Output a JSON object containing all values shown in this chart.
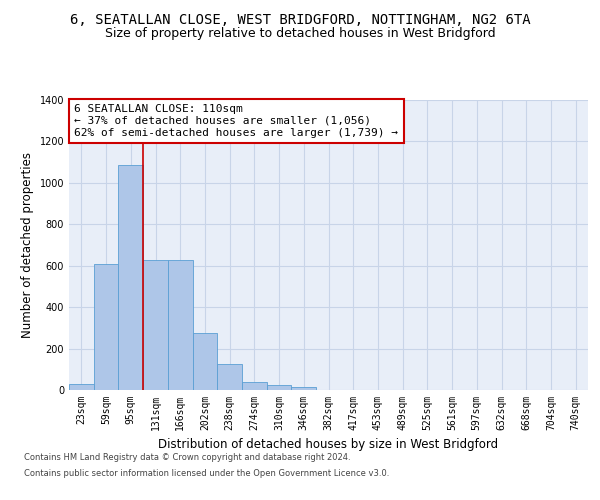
{
  "title_line1": "6, SEATALLAN CLOSE, WEST BRIDGFORD, NOTTINGHAM, NG2 6TA",
  "title_line2": "Size of property relative to detached houses in West Bridgford",
  "xlabel": "Distribution of detached houses by size in West Bridgford",
  "ylabel": "Number of detached properties",
  "footer_line1": "Contains HM Land Registry data © Crown copyright and database right 2024.",
  "footer_line2": "Contains public sector information licensed under the Open Government Licence v3.0.",
  "bar_labels": [
    "23sqm",
    "59sqm",
    "95sqm",
    "131sqm",
    "166sqm",
    "202sqm",
    "238sqm",
    "274sqm",
    "310sqm",
    "346sqm",
    "382sqm",
    "417sqm",
    "453sqm",
    "489sqm",
    "525sqm",
    "561sqm",
    "597sqm",
    "632sqm",
    "668sqm",
    "704sqm",
    "740sqm"
  ],
  "bar_values": [
    30,
    610,
    1085,
    630,
    630,
    275,
    125,
    40,
    25,
    15,
    0,
    0,
    0,
    0,
    0,
    0,
    0,
    0,
    0,
    0,
    0
  ],
  "bar_color": "#aec6e8",
  "bar_edge_color": "#5a9fd4",
  "annotation_text": "6 SEATALLAN CLOSE: 110sqm\n← 37% of detached houses are smaller (1,056)\n62% of semi-detached houses are larger (1,739) →",
  "annotation_box_color": "#ffffff",
  "annotation_box_edge": "#cc0000",
  "vline_x": 2.5,
  "vline_color": "#cc0000",
  "ylim": [
    0,
    1400
  ],
  "yticks": [
    0,
    200,
    400,
    600,
    800,
    1000,
    1200,
    1400
  ],
  "grid_color": "#c8d4e8",
  "bg_color": "#e8eef8",
  "title_fontsize": 10,
  "subtitle_fontsize": 9,
  "axis_label_fontsize": 8.5,
  "tick_fontsize": 7,
  "annotation_fontsize": 8,
  "footer_fontsize": 6
}
